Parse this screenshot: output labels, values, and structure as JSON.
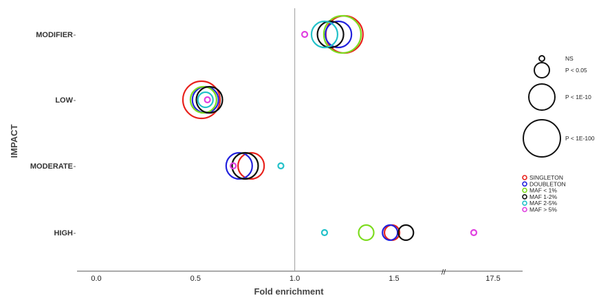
{
  "chart_data": {
    "type": "scatter",
    "title": "",
    "xlabel": "Fold enrichment",
    "ylabel": "IMPACT",
    "categories": [
      "MODIFIER",
      "LOW",
      "MODERATE",
      "HIGH"
    ],
    "x_tick_labels": [
      "0.0",
      "0.5",
      "1.0",
      "1.5",
      "17.5"
    ],
    "x_ticks": [
      0.0,
      0.5,
      1.0,
      1.5,
      17.5
    ],
    "axis_break": "//",
    "reference_line": 1.0,
    "size_legend": [
      {
        "label": "NS",
        "level": 0
      },
      {
        "label": "P < 0.05",
        "level": 1
      },
      {
        "label": "P < 1E-10",
        "level": 2
      },
      {
        "label": "P < 1E-100",
        "level": 3
      }
    ],
    "series": [
      {
        "name": "SINGLETON",
        "color": "#e8221c",
        "points": [
          {
            "category": "MODIFIER",
            "x": 1.25,
            "size_level": 3
          },
          {
            "category": "LOW",
            "x": 0.53,
            "size_level": 3
          },
          {
            "category": "MODERATE",
            "x": 0.78,
            "size_level": 2
          },
          {
            "category": "HIGH",
            "x": 1.49,
            "size_level": 1
          }
        ]
      },
      {
        "name": "DOUBLETON",
        "color": "#2222dd",
        "points": [
          {
            "category": "MODIFIER",
            "x": 1.22,
            "size_level": 2
          },
          {
            "category": "LOW",
            "x": 0.55,
            "size_level": 2
          },
          {
            "category": "MODERATE",
            "x": 0.72,
            "size_level": 2
          },
          {
            "category": "HIGH",
            "x": 1.48,
            "size_level": 1
          }
        ]
      },
      {
        "name": "MAF < 1%",
        "color": "#7ddc1f",
        "points": [
          {
            "category": "MODIFIER",
            "x": 1.24,
            "size_level": 3
          },
          {
            "category": "LOW",
            "x": 0.54,
            "size_level": 2
          },
          {
            "category": "MODERATE",
            "x": 0.75,
            "size_level": 2
          },
          {
            "category": "HIGH",
            "x": 1.36,
            "size_level": 1
          }
        ]
      },
      {
        "name": "MAF 1-2%",
        "color": "#111111",
        "points": [
          {
            "category": "MODIFIER",
            "x": 1.18,
            "size_level": 2
          },
          {
            "category": "LOW",
            "x": 0.57,
            "size_level": 2
          },
          {
            "category": "MODERATE",
            "x": 0.75,
            "size_level": 2
          },
          {
            "category": "HIGH",
            "x": 1.56,
            "size_level": 1
          }
        ]
      },
      {
        "name": "MAF 2-5%",
        "color": "#22c1c9",
        "points": [
          {
            "category": "MODIFIER",
            "x": 1.15,
            "size_level": 2
          },
          {
            "category": "LOW",
            "x": 0.55,
            "size_level": 1
          },
          {
            "category": "MODERATE",
            "x": 0.93,
            "size_level": 0
          },
          {
            "category": "HIGH",
            "x": 1.15,
            "size_level": 0
          }
        ]
      },
      {
        "name": "MAF > 5%",
        "color": "#e040e0",
        "points": [
          {
            "category": "MODIFIER",
            "x": 1.05,
            "size_level": 0
          },
          {
            "category": "LOW",
            "x": 0.56,
            "size_level": 0
          },
          {
            "category": "MODERATE",
            "x": 0.69,
            "size_level": 0
          },
          {
            "category": "HIGH",
            "x": 17.0,
            "size_level": 0
          }
        ]
      }
    ]
  }
}
